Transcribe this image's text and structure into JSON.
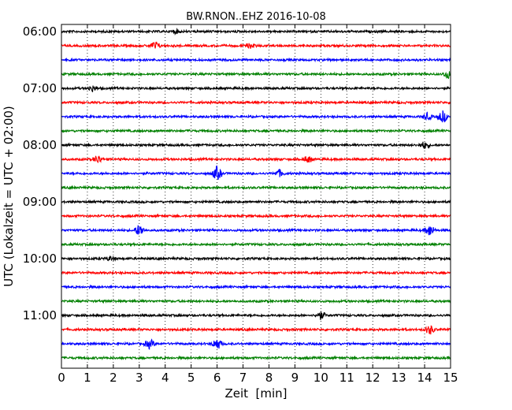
{
  "chart_data": {
    "type": "line",
    "title": "BW.RNON..EHZ 2016-10-08",
    "xlabel": "Zeit  [min]",
    "ylabel": "UTC (Lokalzeit = UTC + 02:00)",
    "xlim": [
      0,
      15
    ],
    "x_ticks": [
      0,
      1,
      2,
      3,
      4,
      5,
      6,
      7,
      8,
      9,
      10,
      11,
      12,
      13,
      14,
      15
    ],
    "x_tick_labels": [
      "0",
      "1",
      "2",
      "3",
      "4",
      "5",
      "6",
      "7",
      "8",
      "9",
      "10",
      "11",
      "12",
      "13",
      "14",
      "15"
    ],
    "y_tick_labels": [
      "06:00",
      "07:00",
      "08:00",
      "09:00",
      "10:00",
      "11:00"
    ],
    "grid": true,
    "trace_interval_min": 15,
    "start_utc": "06:00",
    "trace_count": 24,
    "colors": [
      "#000000",
      "#ff0000",
      "#0000ff",
      "#008000"
    ],
    "events": [
      {
        "trace": 0,
        "x": 4.4,
        "amp": 0.15
      },
      {
        "trace": 1,
        "x": 3.6,
        "amp": 0.35
      },
      {
        "trace": 1,
        "x": 7.3,
        "amp": 0.2
      },
      {
        "trace": 3,
        "x": 14.9,
        "amp": 0.35
      },
      {
        "trace": 4,
        "x": 1.2,
        "amp": 0.25
      },
      {
        "trace": 6,
        "x": 14.1,
        "amp": 0.3
      },
      {
        "trace": 6,
        "x": 14.7,
        "amp": 0.5
      },
      {
        "trace": 8,
        "x": 14.0,
        "amp": 0.3
      },
      {
        "trace": 9,
        "x": 1.4,
        "amp": 0.35
      },
      {
        "trace": 9,
        "x": 9.5,
        "amp": 0.3
      },
      {
        "trace": 10,
        "x": 6.0,
        "amp": 0.6
      },
      {
        "trace": 10,
        "x": 8.4,
        "amp": 0.3
      },
      {
        "trace": 14,
        "x": 3.0,
        "amp": 0.5
      },
      {
        "trace": 14,
        "x": 14.2,
        "amp": 0.5
      },
      {
        "trace": 16,
        "x": 1.9,
        "amp": 0.2
      },
      {
        "trace": 20,
        "x": 10.0,
        "amp": 0.35
      },
      {
        "trace": 21,
        "x": 14.2,
        "amp": 0.4
      },
      {
        "trace": 22,
        "x": 3.4,
        "amp": 0.4
      },
      {
        "trace": 22,
        "x": 6.0,
        "amp": 0.5
      }
    ]
  }
}
